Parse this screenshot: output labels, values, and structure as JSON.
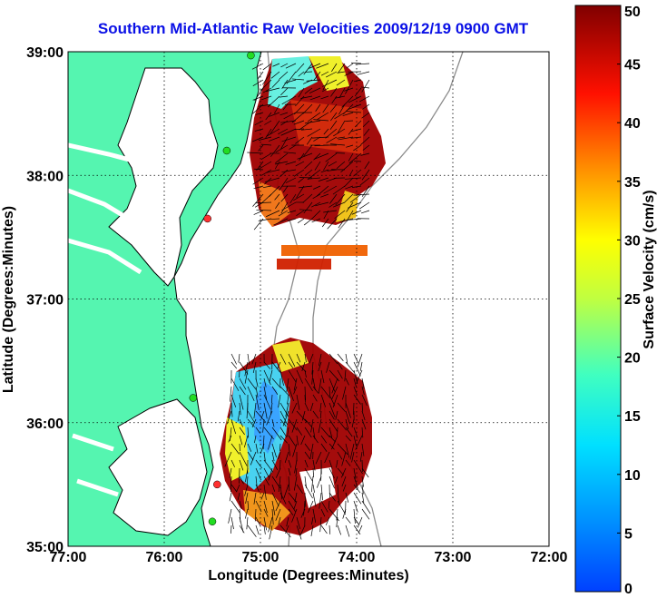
{
  "title": "Southern Mid-Atlantic Raw Velocities 2009/12/19 0900 GMT",
  "x_axis": {
    "label": "Longitude (Degrees:Minutes)",
    "ticks": [
      "77:00",
      "76:00",
      "75:00",
      "74:00",
      "73:00",
      "72:00"
    ],
    "values": [
      -77,
      -76,
      -75,
      -74,
      -73,
      -72
    ]
  },
  "y_axis": {
    "label": "Latitude (Degrees:Minutes)",
    "ticks": [
      "39:00",
      "38:00",
      "37:00",
      "36:00",
      "35:00"
    ],
    "values": [
      39,
      38,
      37,
      36,
      35
    ]
  },
  "colorbar": {
    "label": "Surface Velocity (cm/s)",
    "ticks": [
      "50",
      "45",
      "40",
      "35",
      "30",
      "25",
      "20",
      "15",
      "10",
      "5",
      "0"
    ],
    "range": [
      0,
      50
    ],
    "colormap": "jet"
  },
  "colors": {
    "land": "#55f5b0",
    "coastline": "#000000",
    "bathymetry": "#8c8c8c",
    "title": "#0a10e6",
    "station_active": "#22dd22",
    "station_inactive": "#ff3030"
  },
  "chart_data": {
    "type": "map",
    "title": "Southern Mid-Atlantic Raw Velocities 2009/12/19 0900 GMT",
    "xlabel": "Longitude (Degrees:Minutes)",
    "ylabel": "Latitude (Degrees:Minutes)",
    "xlim": [
      -77,
      -72
    ],
    "ylim": [
      35,
      39
    ],
    "grid": true,
    "color_scale": {
      "label": "Surface Velocity (cm/s)",
      "min": 0,
      "max": 50
    },
    "stations": [
      {
        "lon": -75.1,
        "lat": 38.97,
        "status": "active"
      },
      {
        "lon": -75.35,
        "lat": 38.2,
        "status": "active"
      },
      {
        "lon": -75.55,
        "lat": 37.65,
        "status": "inactive"
      },
      {
        "lon": -75.7,
        "lat": 36.2,
        "status": "active"
      },
      {
        "lon": -75.45,
        "lat": 35.5,
        "status": "inactive"
      },
      {
        "lon": -75.5,
        "lat": 35.2,
        "status": "active"
      }
    ]
  }
}
